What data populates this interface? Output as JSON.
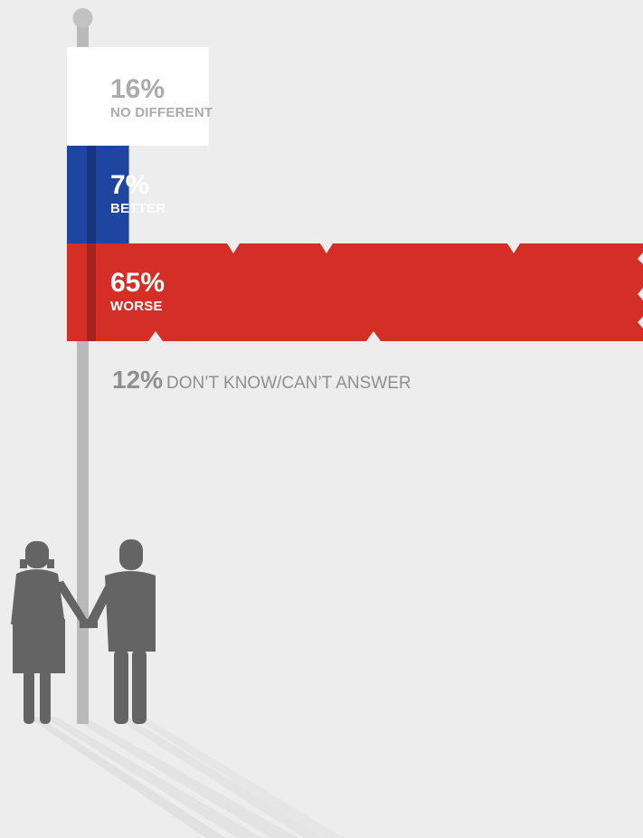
{
  "chart_data": {
    "type": "bar",
    "orientation": "horizontal",
    "categories": [
      "NO DIFFERENT",
      "BETTER",
      "WORSE",
      "DON’T KNOW/CAN’T ANSWER"
    ],
    "values": [
      16,
      7,
      65,
      12
    ],
    "percent_labels": [
      "16%",
      "7%",
      "65%",
      "12%"
    ],
    "unit": "%",
    "xlim": [
      0,
      65
    ],
    "grid": false,
    "legend": "none"
  },
  "colors": {
    "background": "#ededed",
    "no_different": "#ffffff",
    "better": "#1e45a0",
    "worse": "#d42e27",
    "pole": "#b9b9b9",
    "figures": "#646464",
    "muted_text": "#ababab"
  },
  "icons": [
    "flagpole-icon",
    "woman-figure-icon",
    "man-figure-icon"
  ]
}
